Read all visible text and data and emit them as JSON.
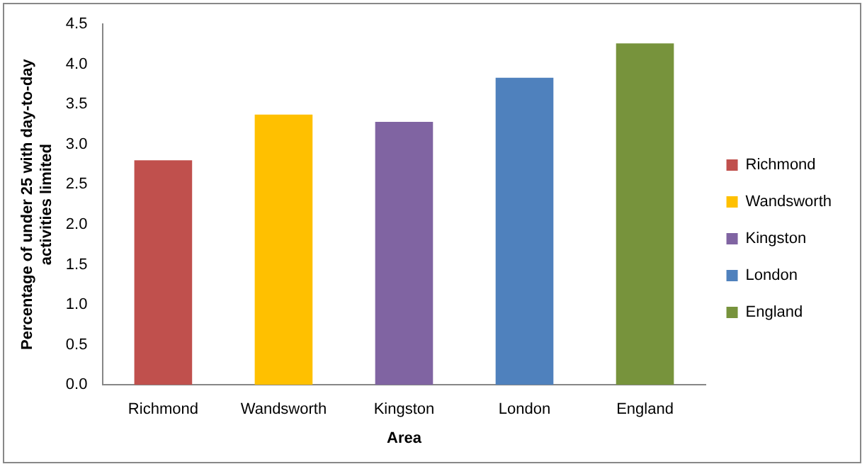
{
  "chart_data": {
    "type": "bar",
    "xlabel": "Area",
    "ylabel": "Percentage of under 25 with day-to-day activities limited",
    "categories": [
      "Richmond",
      "Wandsworth",
      "Kingston",
      "London",
      "England"
    ],
    "series": [
      {
        "name": "Richmond",
        "color": "#c0504d",
        "values": [
          2.8,
          null,
          null,
          null,
          null
        ]
      },
      {
        "name": "Wandsworth",
        "color": "#ffc000",
        "values": [
          null,
          3.37,
          null,
          null,
          null
        ]
      },
      {
        "name": "Kingston",
        "color": "#8064a2",
        "values": [
          null,
          null,
          3.28,
          null,
          null
        ]
      },
      {
        "name": "London",
        "color": "#4f81bd",
        "values": [
          null,
          null,
          null,
          3.83,
          null
        ]
      },
      {
        "name": "England",
        "color": "#77933c",
        "values": [
          null,
          null,
          null,
          null,
          4.26
        ]
      }
    ],
    "ylim": [
      0,
      4.5
    ],
    "yticks": [
      {
        "value": 0,
        "label": "0.0"
      },
      {
        "value": 0.5,
        "label": "0.5"
      },
      {
        "value": 1,
        "label": "1.0"
      },
      {
        "value": 1.5,
        "label": "1.5"
      },
      {
        "value": 2,
        "label": "2.0"
      },
      {
        "value": 2.5,
        "label": "2.5"
      },
      {
        "value": 3,
        "label": "3.0"
      },
      {
        "value": 3.5,
        "label": "3.5"
      },
      {
        "value": 4,
        "label": "4.0"
      },
      {
        "value": 4.5,
        "label": "4.5"
      }
    ],
    "grid": false,
    "legend": "right"
  }
}
